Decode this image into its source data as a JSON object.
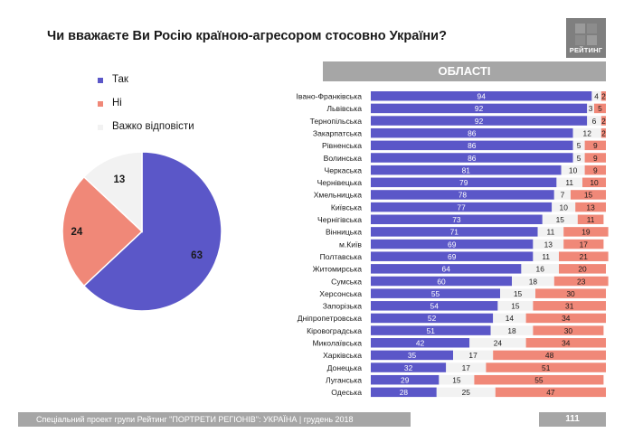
{
  "title": "Чи вважаєте Ви Росію країною-агресором стосовно України?",
  "logo_text": "РЕЙТИНГ",
  "region_header": "ОБЛАСТІ",
  "footer_text": "Спеціальний проект групи Рейтинг \"ПОРТРЕТИ РЕГІОНІВ\": УКРАЇНА | грудень 2018",
  "page_number": "111",
  "colors": {
    "yes": "#5b57c8",
    "no": "#f08878",
    "hard": "#f2f2f2",
    "header": "#a6a6a6"
  },
  "legend": [
    {
      "label": "Так",
      "color": "#5b57c8"
    },
    {
      "label": "Ні",
      "color": "#f08878"
    },
    {
      "label": "Важко відповісти",
      "color": "#f2f2f2"
    }
  ],
  "chart_data": [
    {
      "type": "pie",
      "title": "Чи вважаєте Ви Росію країною-агресором стосовно України?",
      "categories": [
        "Так",
        "Ні",
        "Важко відповісти"
      ],
      "values": [
        63,
        24,
        13
      ]
    },
    {
      "type": "bar",
      "orientation": "horizontal",
      "stacked": true,
      "title": "ОБЛАСТІ",
      "categories": [
        "Івано-Франківська",
        "Львівська",
        "Тернопільська",
        "Закарпатська",
        "Рівненська",
        "Волинська",
        "Черкаська",
        "Чернівецька",
        "Хмельницька",
        "Київська",
        "Чернігівська",
        "Вінницька",
        "м.Київ",
        "Полтавська",
        "Житомирська",
        "Сумська",
        "Херсонська",
        "Запорізька",
        "Дніпропетровська",
        "Кіровоградська",
        "Миколаївська",
        "Харківська",
        "Донецька",
        "Луганська",
        "Одеська"
      ],
      "series": [
        {
          "name": "Так",
          "values": [
            94,
            92,
            92,
            86,
            86,
            86,
            81,
            79,
            78,
            77,
            73,
            71,
            69,
            69,
            64,
            60,
            55,
            54,
            52,
            51,
            42,
            35,
            32,
            29,
            28
          ]
        },
        {
          "name": "Важко відповісти",
          "values": [
            4,
            3,
            6,
            12,
            5,
            5,
            10,
            11,
            7,
            10,
            15,
            11,
            13,
            11,
            16,
            18,
            15,
            15,
            14,
            18,
            24,
            17,
            17,
            15,
            25
          ]
        },
        {
          "name": "Ні",
          "values": [
            2,
            5,
            2,
            2,
            9,
            9,
            9,
            10,
            15,
            13,
            11,
            19,
            17,
            21,
            20,
            23,
            30,
            31,
            34,
            30,
            34,
            48,
            51,
            55,
            47
          ]
        }
      ],
      "xlim": [
        0,
        100
      ]
    }
  ]
}
